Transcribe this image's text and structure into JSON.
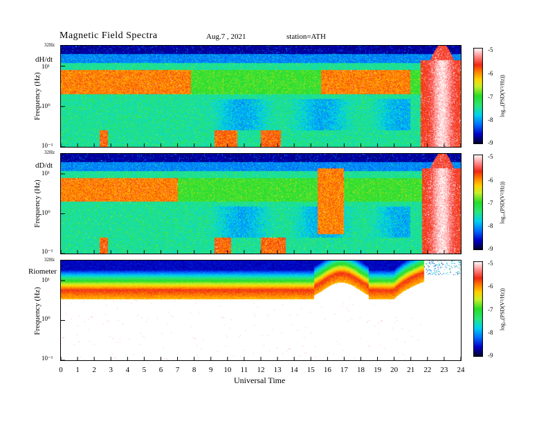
{
  "header": {
    "title": "Magnetic  Field  Spectra",
    "date": "Aug.7  , 2021",
    "station": "station=ATH"
  },
  "chart_data": [
    {
      "type": "heatmap",
      "panel_label": "dH/dt",
      "ylabel": "Frequency  (Hz)",
      "xlabel": "",
      "x_ticks": [
        "0",
        "1",
        "2",
        "3",
        "4",
        "5",
        "6",
        "7",
        "8",
        "9",
        "10",
        "11",
        "12",
        "13",
        "14",
        "15",
        "16",
        "17",
        "18",
        "19",
        "20",
        "21",
        "22",
        "23",
        "24"
      ],
      "xlim": [
        0,
        24
      ],
      "y_ticks": [
        "10⁻¹",
        "10⁰",
        "10¹"
      ],
      "y_top_label": "32Hz",
      "ylim": [
        0.1,
        32
      ],
      "yscale": "log",
      "colorbar": {
        "label": "log₁₀(PSD(V²/Hz))",
        "ticks": [
          "-5",
          "-6",
          "-7",
          "-8",
          "-9"
        ],
        "range": [
          -9,
          -5
        ]
      },
      "features": {
        "red_band_hours": [
          [
            0,
            7.8
          ],
          [
            15.6,
            21.0
          ]
        ],
        "red_band_freq_hz": [
          2,
          8
        ],
        "storm_hours": [
          21.6,
          24
        ],
        "storm_peak_hour": 22.9,
        "low_freq_bursts": [
          [
            2.3,
            2.8
          ],
          [
            9.2,
            10.6
          ],
          [
            12.0,
            13.2
          ]
        ]
      }
    },
    {
      "type": "heatmap",
      "panel_label": "dD/dt",
      "ylabel": "Frequency  (Hz)",
      "xlabel": "",
      "x_ticks": [
        "0",
        "1",
        "2",
        "3",
        "4",
        "5",
        "6",
        "7",
        "8",
        "9",
        "10",
        "11",
        "12",
        "13",
        "14",
        "15",
        "16",
        "17",
        "18",
        "19",
        "20",
        "21",
        "22",
        "23",
        "24"
      ],
      "xlim": [
        0,
        24
      ],
      "y_ticks": [
        "10⁻¹",
        "10⁰",
        "10¹"
      ],
      "y_top_label": "32Hz",
      "ylim": [
        0.1,
        32
      ],
      "yscale": "log",
      "colorbar": {
        "label": "log₁₀(PSD(V²/Hz))",
        "ticks": [
          "-5",
          "-6",
          "-7",
          "-8",
          "-9"
        ],
        "range": [
          -9,
          -5
        ]
      },
      "features": {
        "red_band_hours": [
          [
            0,
            7.0
          ]
        ],
        "red_band_freq_hz": [
          2,
          8
        ],
        "blob_hours": [
          15.4,
          17.0
        ],
        "storm_hours": [
          21.7,
          24
        ],
        "storm_peak_hour": 22.9,
        "low_freq_bursts": [
          [
            2.3,
            2.8
          ],
          [
            9.2,
            10.2
          ],
          [
            12.0,
            13.5
          ]
        ]
      }
    },
    {
      "type": "heatmap",
      "panel_label": "Riometer",
      "ylabel": "Frequency  (Hz)",
      "xlabel": "Universal Time",
      "x_ticks": [
        "0",
        "1",
        "2",
        "3",
        "4",
        "5",
        "6",
        "7",
        "8",
        "9",
        "10",
        "11",
        "12",
        "13",
        "14",
        "15",
        "16",
        "17",
        "18",
        "19",
        "20",
        "21",
        "22",
        "23",
        "24"
      ],
      "xlim": [
        0,
        24
      ],
      "y_ticks": [
        "10⁻¹",
        "10⁰",
        "10¹"
      ],
      "y_top_label": "32Hz",
      "ylim": [
        0.1,
        32
      ],
      "yscale": "log",
      "colorbar": {
        "label": "log₁₀(PSD(V²/Hz))",
        "ticks": [
          "-5",
          "-6",
          "-7",
          "-8",
          "-9"
        ],
        "range": [
          -9,
          -5
        ]
      },
      "features": {
        "red_edge_freq_hz": 6,
        "bump_hours": [
          15.2,
          18.5
        ],
        "bump_edge_freq_hz": 16,
        "data_end_hour": 21.8
      }
    }
  ]
}
